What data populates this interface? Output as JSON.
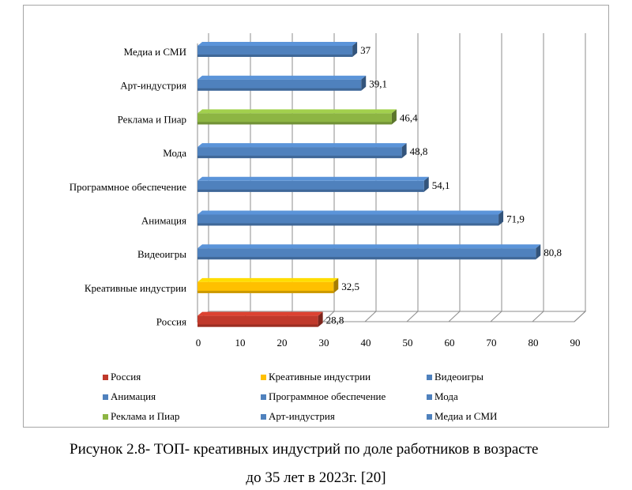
{
  "chart_data": {
    "type": "bar",
    "orientation": "horizontal",
    "categories": [
      "Медиа и СМИ",
      "Арт-индустрия",
      "Реклама и Пиар",
      "Мода",
      "Программное обеспечение",
      "Анимация",
      "Видеоигры",
      "Креативные индустрии",
      "Россия"
    ],
    "values": [
      37,
      39.1,
      46.4,
      48.8,
      54.1,
      71.9,
      80.8,
      32.5,
      28.8
    ],
    "value_labels": [
      "37",
      "39,1",
      "46,4",
      "48,8",
      "54,1",
      "71,9",
      "80,8",
      "32,5",
      "28,8"
    ],
    "colors": [
      "#4f81bd",
      "#4f81bd",
      "#8db543",
      "#4f81bd",
      "#4f81bd",
      "#4f81bd",
      "#4f81bd",
      "#ffc000",
      "#c0392b"
    ],
    "xlim": [
      0,
      90
    ],
    "xticks": [
      0,
      10,
      20,
      30,
      40,
      50,
      60,
      70,
      80,
      90
    ],
    "grid": true,
    "legend_position": "bottom",
    "legend": [
      {
        "name": "Россия",
        "color": "#c0392b"
      },
      {
        "name": "Креативные индустрии",
        "color": "#ffc000"
      },
      {
        "name": "Видеоигры",
        "color": "#4f81bd"
      },
      {
        "name": "Анимация",
        "color": "#4f81bd"
      },
      {
        "name": "Программное обеспечение",
        "color": "#4f81bd"
      },
      {
        "name": "Мода",
        "color": "#4f81bd"
      },
      {
        "name": "Реклама и Пиар",
        "color": "#8db543"
      },
      {
        "name": "Арт-индустрия",
        "color": "#4f81bd"
      },
      {
        "name": "Медиа и СМИ",
        "color": "#4f81bd"
      }
    ]
  },
  "caption": {
    "line1": "Рисунок 2.8- ТОП- креативных индустрий по доле работников в возрасте",
    "line2": "до 35 лет  в 2023г. [20]"
  }
}
